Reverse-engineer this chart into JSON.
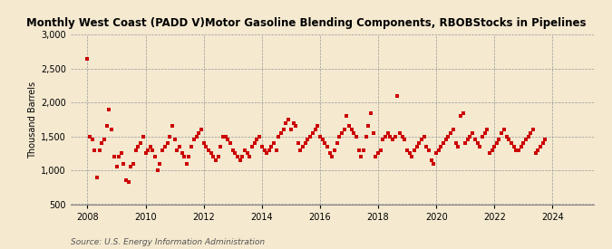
{
  "title": "Monthly West Coast (PADD V)Motor Gasoline Blending Components, RBOBStocks in Pipelines",
  "ylabel": "Thousand Barrels",
  "source": "Source: U.S. Energy Information Administration",
  "bg_color": "#f5e9d0",
  "marker_color": "#cc0000",
  "ylim": [
    500,
    3000
  ],
  "yticks": [
    500,
    1000,
    1500,
    2000,
    2500,
    3000
  ],
  "ytick_labels": [
    "500",
    "1,000",
    "1,500",
    "2,000",
    "2,500",
    "3,000"
  ],
  "data": [
    2650,
    1500,
    1450,
    1300,
    900,
    1300,
    1400,
    1450,
    1650,
    1900,
    1600,
    1200,
    1050,
    1200,
    1250,
    1100,
    850,
    830,
    1050,
    1100,
    1300,
    1350,
    1400,
    1500,
    1250,
    1300,
    1350,
    1300,
    1200,
    1000,
    1100,
    1300,
    1350,
    1400,
    1500,
    1650,
    1450,
    1300,
    1350,
    1250,
    1200,
    1100,
    1200,
    1350,
    1450,
    1500,
    1550,
    1600,
    1400,
    1350,
    1300,
    1250,
    1200,
    1150,
    1200,
    1350,
    1500,
    1500,
    1450,
    1400,
    1300,
    1250,
    1200,
    1150,
    1200,
    1300,
    1250,
    1200,
    1350,
    1400,
    1450,
    1500,
    1350,
    1300,
    1250,
    1300,
    1350,
    1400,
    1300,
    1500,
    1550,
    1600,
    1700,
    1750,
    1600,
    1700,
    1650,
    1400,
    1300,
    1350,
    1400,
    1450,
    1500,
    1550,
    1600,
    1650,
    1500,
    1450,
    1400,
    1350,
    1250,
    1200,
    1300,
    1400,
    1500,
    1550,
    1600,
    1800,
    1650,
    1600,
    1550,
    1500,
    1300,
    1200,
    1300,
    1500,
    1650,
    1850,
    1550,
    1200,
    1250,
    1300,
    1450,
    1500,
    1550,
    1500,
    1450,
    1500,
    2100,
    1550,
    1500,
    1450,
    1300,
    1250,
    1200,
    1300,
    1350,
    1400,
    1450,
    1500,
    1350,
    1300,
    1150,
    1100,
    1250,
    1300,
    1350,
    1400,
    1450,
    1500,
    1550,
    1600,
    1400,
    1350,
    1800,
    1850,
    1400,
    1450,
    1500,
    1550,
    1450,
    1400,
    1350,
    1500,
    1550,
    1600,
    1250,
    1300,
    1350,
    1400,
    1450,
    1550,
    1600,
    1500,
    1450,
    1400,
    1350,
    1300,
    1300,
    1350,
    1400,
    1450,
    1500,
    1550,
    1600,
    1250,
    1300,
    1350,
    1400,
    1450
  ],
  "start_year": 2008,
  "start_month": 1
}
